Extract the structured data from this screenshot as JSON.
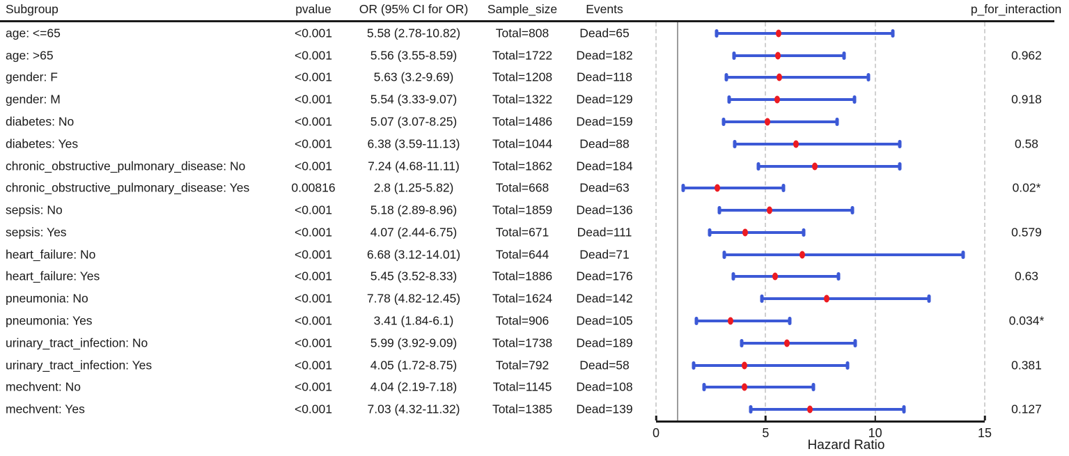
{
  "header": {
    "subgroup": "Subgroup",
    "pvalue": "pvalue",
    "or_ci": "OR (95% CI for OR)",
    "sample_size": "Sample_size",
    "events": "Events",
    "p_for_interaction": "p_for_interaction"
  },
  "axis": {
    "xlabel": "Hazard Ratio",
    "tick_labels": [
      "0",
      "5",
      "10",
      "15"
    ]
  },
  "colors": {
    "ci_bar": "#3c59d6",
    "point": "#ec1b22",
    "reference_line": "#9c9c9c",
    "gridline": "#d0d0d0",
    "rule": "#1a1a1a",
    "text": "#1a1a1a"
  },
  "chart_data": {
    "type": "scatter",
    "subtype": "forest-plot",
    "title": "",
    "xlabel": "Hazard Ratio",
    "xlim": [
      0,
      15
    ],
    "xticks": [
      0,
      5,
      10,
      15
    ],
    "gridlines": "dashed vertical at xticks",
    "reference_line_x": 1,
    "rows": [
      {
        "subgroup": "age: <=65",
        "pvalue": "<0.001",
        "or_ci": "5.58 (2.78-10.82)",
        "est": 5.58,
        "lo": 2.78,
        "hi": 10.82,
        "sample_size": "Total=808",
        "events": "Dead=65",
        "p_for_interaction": ""
      },
      {
        "subgroup": "age: >65",
        "pvalue": "<0.001",
        "or_ci": "5.56 (3.55-8.59)",
        "est": 5.56,
        "lo": 3.55,
        "hi": 8.59,
        "sample_size": "Total=1722",
        "events": "Dead=182",
        "p_for_interaction": "0.962"
      },
      {
        "subgroup": "gender: F",
        "pvalue": "<0.001",
        "or_ci": "5.63 (3.2-9.69)",
        "est": 5.63,
        "lo": 3.2,
        "hi": 9.69,
        "sample_size": "Total=1208",
        "events": "Dead=118",
        "p_for_interaction": ""
      },
      {
        "subgroup": "gender: M",
        "pvalue": "<0.001",
        "or_ci": "5.54 (3.33-9.07)",
        "est": 5.54,
        "lo": 3.33,
        "hi": 9.07,
        "sample_size": "Total=1322",
        "events": "Dead=129",
        "p_for_interaction": "0.918"
      },
      {
        "subgroup": "diabetes: No",
        "pvalue": "<0.001",
        "or_ci": "5.07 (3.07-8.25)",
        "est": 5.07,
        "lo": 3.07,
        "hi": 8.25,
        "sample_size": "Total=1486",
        "events": "Dead=159",
        "p_for_interaction": ""
      },
      {
        "subgroup": "diabetes: Yes",
        "pvalue": "<0.001",
        "or_ci": "6.38 (3.59-11.13)",
        "est": 6.38,
        "lo": 3.59,
        "hi": 11.13,
        "sample_size": "Total=1044",
        "events": "Dead=88",
        "p_for_interaction": "0.58"
      },
      {
        "subgroup": "chronic_obstructive_pulmonary_disease: No",
        "pvalue": "<0.001",
        "or_ci": "7.24 (4.68-11.11)",
        "est": 7.24,
        "lo": 4.68,
        "hi": 11.11,
        "sample_size": "Total=1862",
        "events": "Dead=184",
        "p_for_interaction": ""
      },
      {
        "subgroup": "chronic_obstructive_pulmonary_disease: Yes",
        "pvalue": "0.00816",
        "or_ci": "2.8 (1.25-5.82)",
        "est": 2.8,
        "lo": 1.25,
        "hi": 5.82,
        "sample_size": "Total=668",
        "events": "Dead=63",
        "p_for_interaction": "0.02*"
      },
      {
        "subgroup": "sepsis: No",
        "pvalue": "<0.001",
        "or_ci": "5.18 (2.89-8.96)",
        "est": 5.18,
        "lo": 2.89,
        "hi": 8.96,
        "sample_size": "Total=1859",
        "events": "Dead=136",
        "p_for_interaction": ""
      },
      {
        "subgroup": "sepsis: Yes",
        "pvalue": "<0.001",
        "or_ci": "4.07 (2.44-6.75)",
        "est": 4.07,
        "lo": 2.44,
        "hi": 6.75,
        "sample_size": "Total=671",
        "events": "Dead=111",
        "p_for_interaction": "0.579"
      },
      {
        "subgroup": "heart_failure: No",
        "pvalue": "<0.001",
        "or_ci": "6.68 (3.12-14.01)",
        "est": 6.68,
        "lo": 3.12,
        "hi": 14.01,
        "sample_size": "Total=644",
        "events": "Dead=71",
        "p_for_interaction": ""
      },
      {
        "subgroup": "heart_failure: Yes",
        "pvalue": "<0.001",
        "or_ci": "5.45 (3.52-8.33)",
        "est": 5.45,
        "lo": 3.52,
        "hi": 8.33,
        "sample_size": "Total=1886",
        "events": "Dead=176",
        "p_for_interaction": "0.63"
      },
      {
        "subgroup": "pneumonia: No",
        "pvalue": "<0.001",
        "or_ci": "7.78 (4.82-12.45)",
        "est": 7.78,
        "lo": 4.82,
        "hi": 12.45,
        "sample_size": "Total=1624",
        "events": "Dead=142",
        "p_for_interaction": ""
      },
      {
        "subgroup": "pneumonia: Yes",
        "pvalue": "<0.001",
        "or_ci": "3.41 (1.84-6.1)",
        "est": 3.41,
        "lo": 1.84,
        "hi": 6.1,
        "sample_size": "Total=906",
        "events": "Dead=105",
        "p_for_interaction": "0.034*"
      },
      {
        "subgroup": "urinary_tract_infection: No",
        "pvalue": "<0.001",
        "or_ci": "5.99 (3.92-9.09)",
        "est": 5.99,
        "lo": 3.92,
        "hi": 9.09,
        "sample_size": "Total=1738",
        "events": "Dead=189",
        "p_for_interaction": ""
      },
      {
        "subgroup": "urinary_tract_infection: Yes",
        "pvalue": "<0.001",
        "or_ci": "4.05 (1.72-8.75)",
        "est": 4.05,
        "lo": 1.72,
        "hi": 8.75,
        "sample_size": "Total=792",
        "events": "Dead=58",
        "p_for_interaction": "0.381"
      },
      {
        "subgroup": "mechvent: No",
        "pvalue": "<0.001",
        "or_ci": "4.04 (2.19-7.18)",
        "est": 4.04,
        "lo": 2.19,
        "hi": 7.18,
        "sample_size": "Total=1145",
        "events": "Dead=108",
        "p_for_interaction": ""
      },
      {
        "subgroup": "mechvent: Yes",
        "pvalue": "<0.001",
        "or_ci": "7.03 (4.32-11.32)",
        "est": 7.03,
        "lo": 4.32,
        "hi": 11.32,
        "sample_size": "Total=1385",
        "events": "Dead=139",
        "p_for_interaction": "0.127"
      }
    ]
  }
}
